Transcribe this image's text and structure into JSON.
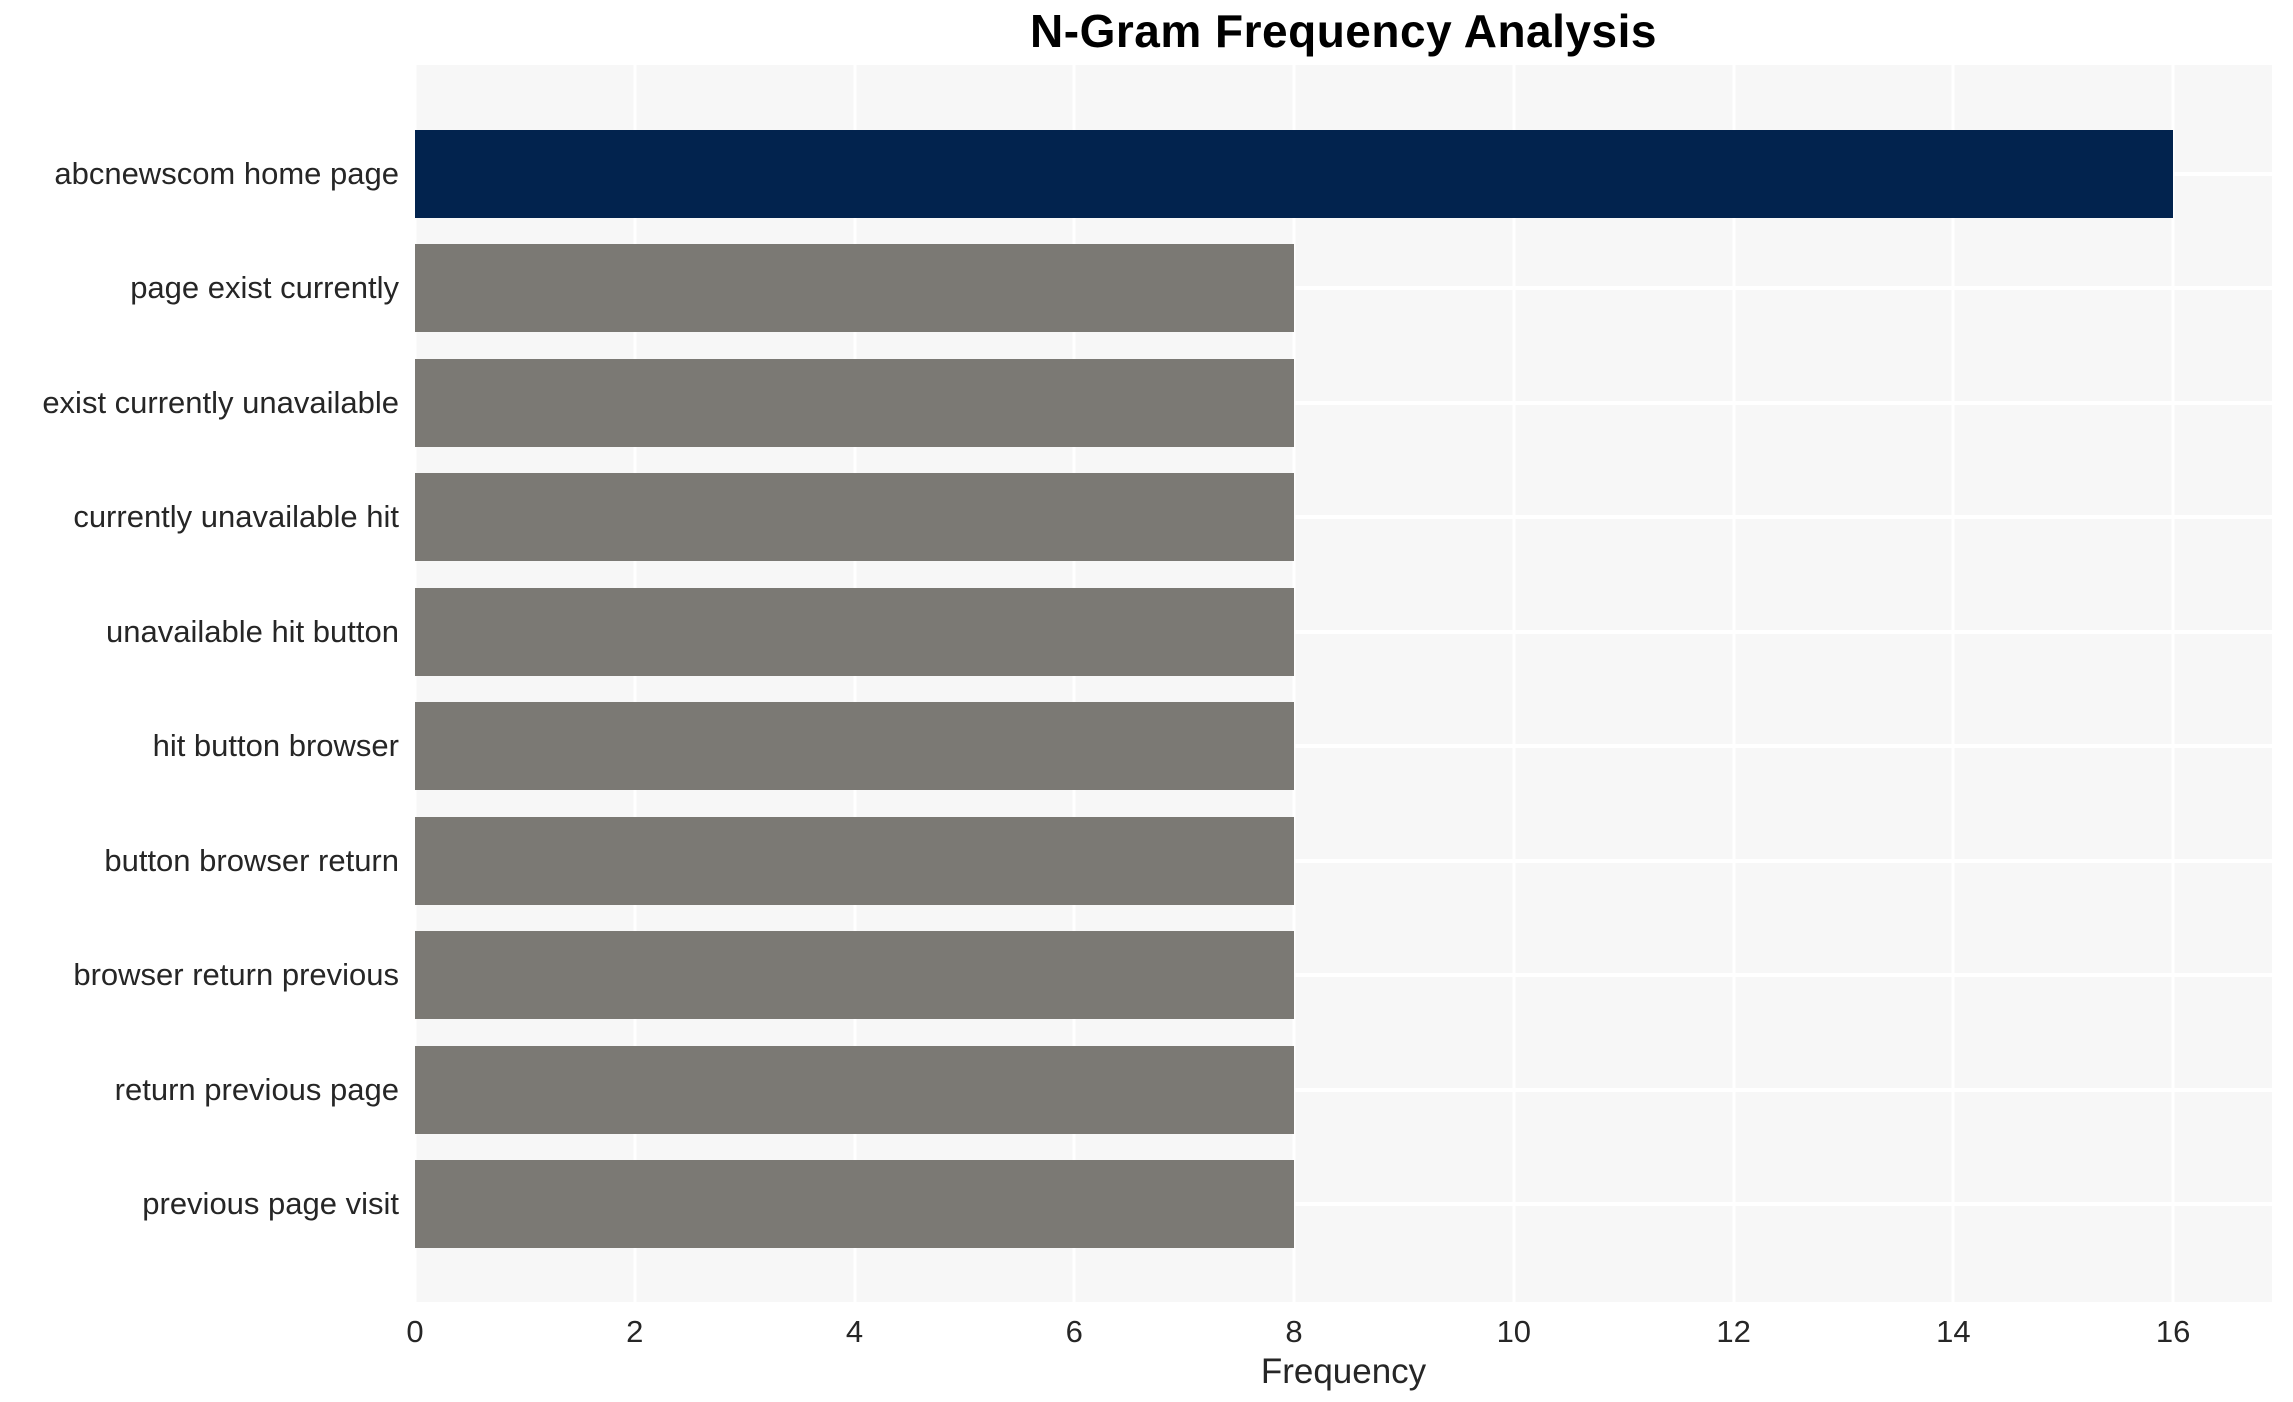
{
  "chart_data": {
    "type": "bar",
    "orientation": "horizontal",
    "title": "N-Gram Frequency Analysis",
    "xlabel": "Frequency",
    "categories": [
      "abcnewscom home page",
      "page exist currently",
      "exist currently unavailable",
      "currently unavailable hit",
      "unavailable hit button",
      "hit button browser",
      "button browser return",
      "browser return previous",
      "return previous page",
      "previous page visit"
    ],
    "values": [
      16,
      8,
      8,
      8,
      8,
      8,
      8,
      8,
      8,
      8
    ],
    "bar_colors": [
      "#02234e",
      "#7b7974",
      "#7b7974",
      "#7b7974",
      "#7b7974",
      "#7b7974",
      "#7b7974",
      "#7b7974",
      "#7b7974",
      "#7b7974"
    ],
    "xticks": [
      0,
      2,
      4,
      6,
      8,
      10,
      12,
      14,
      16
    ],
    "xlim": [
      0,
      16.9
    ],
    "grid": true,
    "legend": null,
    "colors": {
      "highlight_bar": "#02234e",
      "default_bar": "#7b7974",
      "plot_background": "#f7f7f7",
      "grid_line": "#ffffff",
      "tick_text": "#262626",
      "title_text": "#000000"
    }
  }
}
